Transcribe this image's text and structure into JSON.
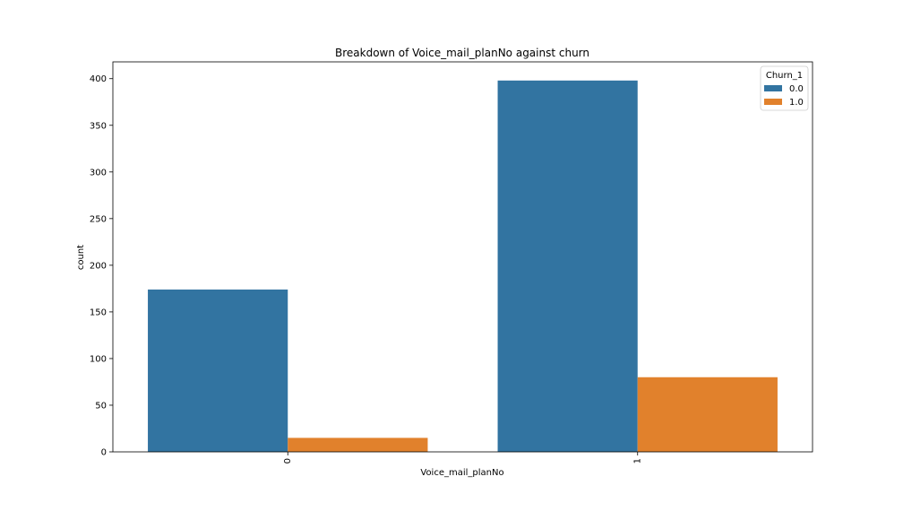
{
  "chart_data": {
    "type": "bar",
    "title": "Breakdown of Voice_mail_planNo against churn",
    "xlabel": "Voice_mail_planNo",
    "ylabel": "count",
    "categories": [
      "0",
      "1"
    ],
    "series": [
      {
        "name": "0.0",
        "color": "#3274a1",
        "values": [
          174,
          398
        ]
      },
      {
        "name": "1.0",
        "color": "#e1812c",
        "values": [
          15,
          80
        ]
      }
    ],
    "ylim": [
      0,
      418
    ],
    "yticks": [
      0,
      50,
      100,
      150,
      200,
      250,
      300,
      350,
      400
    ],
    "legend": {
      "title": "Churn_1",
      "placement": "top-right"
    },
    "grid": false,
    "xtick_rotation": 90
  }
}
